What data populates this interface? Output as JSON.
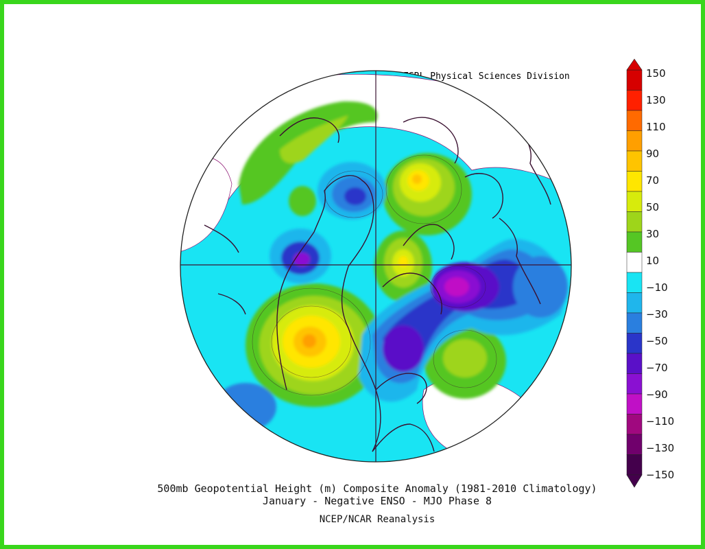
{
  "credit": "NOAA/ESRL Physical Sciences Division",
  "caption": {
    "line1": "500mb Geopotential Height (m) Composite Anomaly (1981-2010 Climatology)",
    "line2": "January - Negative ENSO - MJO Phase 8",
    "line3": "NCEP/NCAR Reanalysis"
  },
  "colorbar": {
    "labels": [
      "150",
      "130",
      "110",
      "90",
      "70",
      "50",
      "30",
      "10",
      "-10",
      "-30",
      "-50",
      "-70",
      "-90",
      "-110",
      "-130",
      "-150"
    ],
    "colors": [
      "#d60000",
      "#ff2000",
      "#ff6a00",
      "#ff9f00",
      "#ffc400",
      "#ffe600",
      "#d7eb0c",
      "#9ed51a",
      "#55c624",
      "#ffffff",
      "#19e4f3",
      "#1fb6ec",
      "#2a7fdf",
      "#2a35c9",
      "#5a10c8",
      "#8a10d2",
      "#c010c6",
      "#a0087f",
      "#70006c",
      "#44004c"
    ],
    "accent_outer": "#39d61c"
  },
  "map": {
    "projection": "north-polar-stereographic",
    "anomalies": [
      {
        "region": "northern Alaska / Beaufort",
        "sign": "positive"
      },
      {
        "region": "Scandinavia / western Russia",
        "sign": "positive"
      },
      {
        "region": "western Europe / Iberia",
        "sign": "positive"
      },
      {
        "region": "north Pacific / Gulf of Alaska",
        "sign": "positive"
      },
      {
        "region": "northern Siberia",
        "sign": "positive"
      },
      {
        "region": "Canada / Hudson Bay",
        "sign": "negative"
      },
      {
        "region": "Greenland / North Atlantic",
        "sign": "negative"
      },
      {
        "region": "eastern Siberia / Bering",
        "sign": "negative"
      },
      {
        "region": "central Asia",
        "sign": "negative"
      }
    ]
  }
}
